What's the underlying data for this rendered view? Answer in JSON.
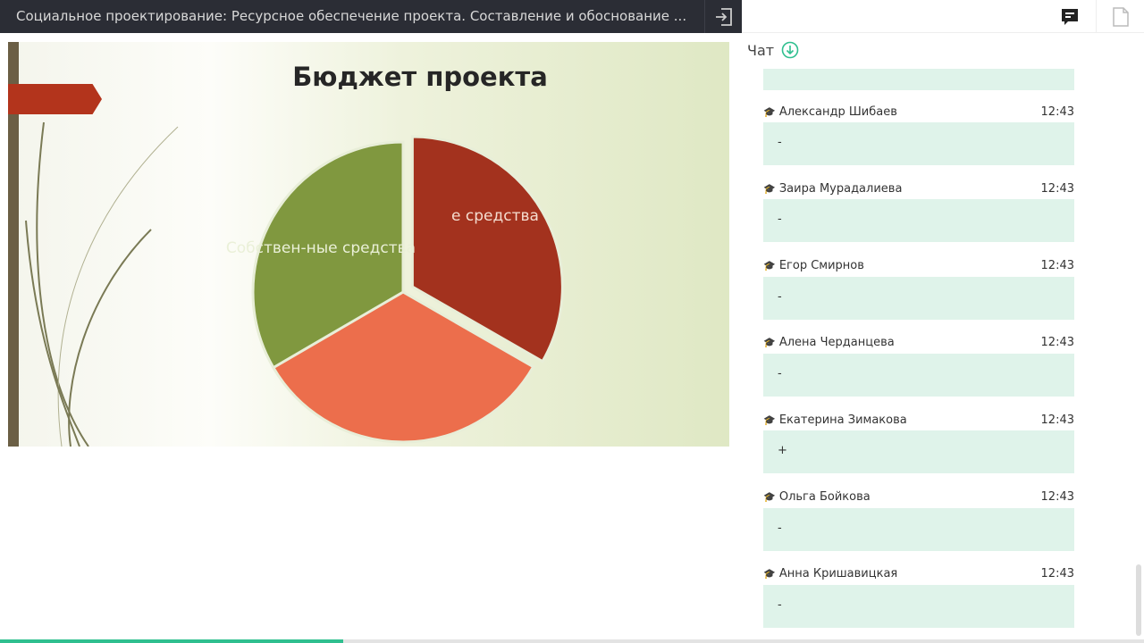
{
  "header": {
    "title": "Социальное проектирование: Ресурсное обеспечение проекта. Составление и обоснование ..."
  },
  "slide": {
    "title": "Бюджет проекта",
    "labels": [
      "Собствен-ные средства",
      "е средства"
    ]
  },
  "chart_data": {
    "type": "pie",
    "values": [
      33.3,
      33.3,
      33.4
    ],
    "colors": [
      "#a3321e",
      "#ec6e4c",
      "#80983f"
    ],
    "exploded": [
      true,
      false,
      false
    ],
    "labels": [
      "е средства",
      "",
      "Собствен-ные средства"
    ]
  },
  "chat": {
    "title": "Чат",
    "messages": [
      {
        "author": "Александр Шибаев",
        "time": "12:43",
        "text": "-"
      },
      {
        "author": "Заира Мурадалиева",
        "time": "12:43",
        "text": "-"
      },
      {
        "author": "Егор Смирнов",
        "time": "12:43",
        "text": "-"
      },
      {
        "author": "Алена Черданцева",
        "time": "12:43",
        "text": "-"
      },
      {
        "author": "Екатерина Зимакова",
        "time": "12:43",
        "text": "+"
      },
      {
        "author": "Ольга Бойкова",
        "time": "12:43",
        "text": "-"
      },
      {
        "author": "Анна Кришавицкая",
        "time": "12:43",
        "text": "-"
      }
    ]
  },
  "progress": {
    "value": 30
  }
}
